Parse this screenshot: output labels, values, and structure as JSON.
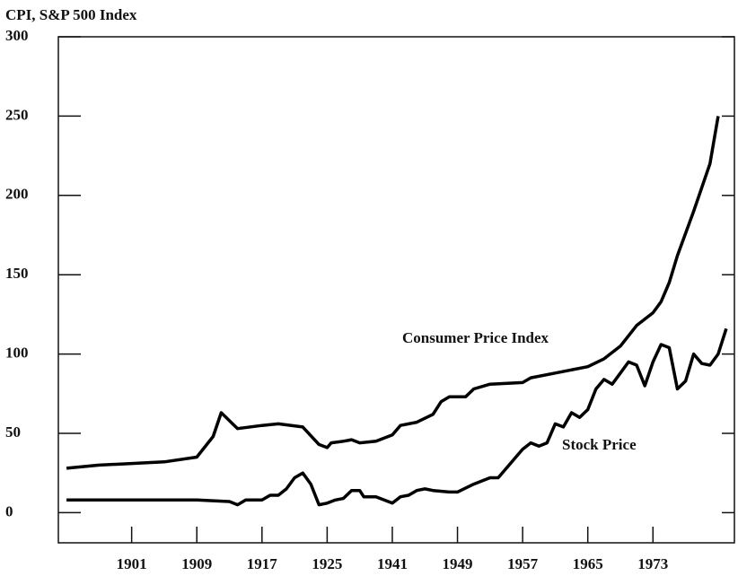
{
  "chart_data": {
    "type": "line",
    "title": "CPI, S&P 500 Index",
    "xlim": [
      1892,
      1983
    ],
    "xticks": [
      1901,
      1909,
      1917,
      1925,
      1941,
      1949,
      1957,
      1965,
      1973
    ],
    "ylim": [
      -19,
      300
    ],
    "yticks": [
      0,
      50,
      100,
      150,
      200,
      250,
      300
    ],
    "series": [
      {
        "name": "Consumer Price Index",
        "color": "#000000",
        "x": [
          1893,
          1897,
          1901,
          1905,
          1909,
          1911,
          1912,
          1914,
          1917,
          1919,
          1922,
          1924,
          1925,
          1926,
          1929,
          1931,
          1933,
          1937,
          1941,
          1942,
          1944,
          1946,
          1947,
          1948,
          1950,
          1951,
          1953,
          1957,
          1958,
          1961,
          1965,
          1967,
          1969,
          1971,
          1973,
          1974,
          1975,
          1976,
          1978,
          1980,
          1981
        ],
        "values": [
          28,
          30,
          31,
          32,
          35,
          48,
          63,
          53,
          55,
          56,
          54,
          43,
          41,
          44,
          45,
          46,
          44,
          45,
          49,
          55,
          57,
          62,
          70,
          73,
          73,
          78,
          81,
          82,
          85,
          88,
          92,
          97,
          105,
          118,
          126,
          133,
          145,
          162,
          190,
          220,
          250
        ]
      },
      {
        "name": "Stock Price",
        "color": "#000000",
        "x": [
          1893,
          1899,
          1901,
          1905,
          1909,
          1913,
          1914,
          1915,
          1917,
          1918,
          1919,
          1920,
          1921,
          1922,
          1923,
          1924,
          1925,
          1927,
          1929,
          1931,
          1933,
          1934,
          1937,
          1941,
          1942,
          1943,
          1944,
          1945,
          1946,
          1948,
          1949,
          1951,
          1953,
          1954,
          1955,
          1957,
          1958,
          1959,
          1960,
          1961,
          1962,
          1963,
          1964,
          1965,
          1966,
          1967,
          1968,
          1969,
          1970,
          1971,
          1972,
          1973,
          1974,
          1975,
          1976,
          1977,
          1978,
          1979,
          1980,
          1981,
          1982
        ],
        "values": [
          8,
          8,
          8,
          8,
          8,
          7,
          5,
          8,
          8,
          11,
          11,
          15,
          22,
          25,
          18,
          5,
          6,
          8,
          9,
          14,
          14,
          10,
          10,
          6,
          10,
          11,
          14,
          15,
          14,
          13,
          13,
          18,
          22,
          22,
          28,
          40,
          44,
          42,
          44,
          56,
          54,
          63,
          60,
          65,
          78,
          84,
          81,
          88,
          95,
          93,
          80,
          95,
          106,
          104,
          78,
          83,
          100,
          94,
          93,
          100,
          116
        ]
      }
    ]
  }
}
